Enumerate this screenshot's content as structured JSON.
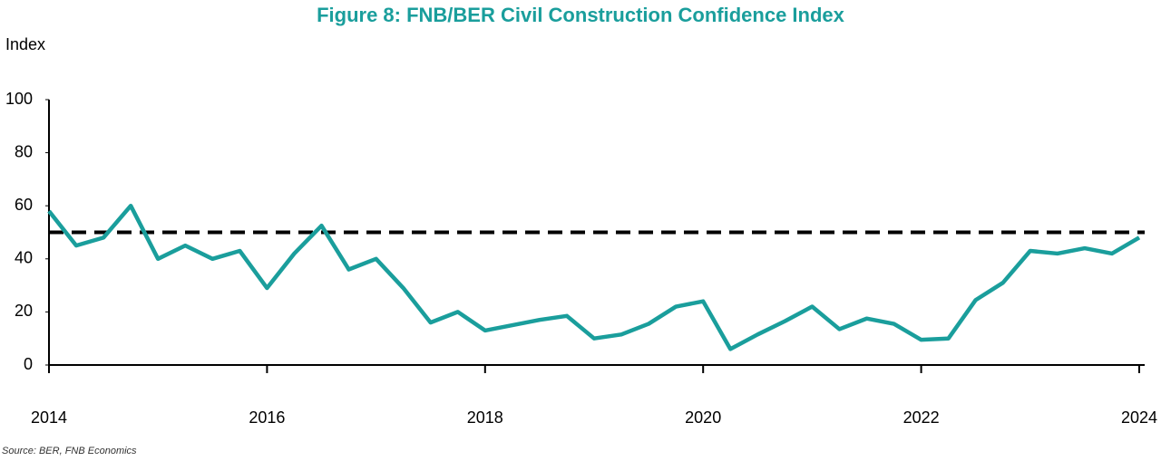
{
  "chart_data": {
    "type": "line",
    "title": "Figure 8: FNB/BER Civil Construction Confidence Index",
    "y_label": "Index",
    "source": "Source: BER, FNB Economics",
    "x": [
      2014,
      2014.25,
      2014.5,
      2014.75,
      2015,
      2015.25,
      2015.5,
      2015.75,
      2016,
      2016.25,
      2016.5,
      2016.75,
      2017,
      2017.25,
      2017.5,
      2017.75,
      2018,
      2018.25,
      2018.5,
      2018.75,
      2019,
      2019.25,
      2019.5,
      2019.75,
      2020,
      2020.25,
      2020.5,
      2020.75,
      2021,
      2021.25,
      2021.5,
      2021.75,
      2022,
      2022.25,
      2022.5,
      2022.75,
      2023,
      2023.25,
      2023.5,
      2023.75,
      2024
    ],
    "values": [
      58,
      45,
      48,
      60,
      40,
      45,
      40,
      43,
      29,
      42,
      52.5,
      36,
      40,
      29,
      16,
      20,
      13,
      15,
      17,
      18.5,
      10,
      11.5,
      15.5,
      22,
      24,
      6,
      11.5,
      16.5,
      22,
      13.5,
      17.5,
      15.5,
      9.5,
      10,
      24.5,
      31,
      43,
      42,
      44,
      42,
      48
    ],
    "color": "#1a9e9c",
    "reference_line": 50,
    "reference_color": "#000000",
    "xlim": [
      2014,
      2024.05
    ],
    "xticks": [
      2014,
      2016,
      2018,
      2020,
      2022,
      2024
    ],
    "ylim": [
      0,
      100
    ],
    "yticks": [
      0,
      20,
      40,
      60,
      80,
      100
    ]
  }
}
